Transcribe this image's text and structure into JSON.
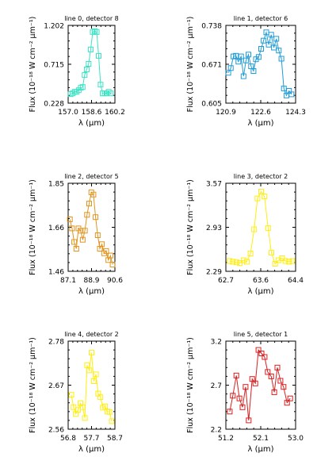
{
  "chart_data": [
    {
      "type": "line",
      "title": "line 0, detector 8",
      "xlabel": "λ (μm)",
      "ylabel": "Flux (10⁻¹⁸ W cm⁻² μm⁻¹)",
      "xlim": [
        157.0,
        160.2
      ],
      "ylim": [
        0.228,
        1.202
      ],
      "xticks": [
        "157.0",
        "158.6",
        "160.2"
      ],
      "yticks": [
        "0.228",
        "0.715",
        "1.202"
      ],
      "color": "#3be3c4",
      "marker": "square",
      "x": [
        157.17,
        157.31,
        157.45,
        157.58,
        157.72,
        157.86,
        157.99,
        158.13,
        158.27,
        158.4,
        158.54,
        158.68,
        158.81,
        158.95,
        159.09,
        159.22,
        159.36,
        159.5,
        159.63,
        159.77,
        159.91
      ],
      "y": [
        0.34,
        0.35,
        0.37,
        0.37,
        0.39,
        0.42,
        0.43,
        0.58,
        0.65,
        0.72,
        0.9,
        1.12,
        1.13,
        1.12,
        0.82,
        0.46,
        0.35,
        0.35,
        0.35,
        0.37,
        0.35
      ]
    },
    {
      "type": "line",
      "title": "line 1, detector 6",
      "xlabel": "λ (μm)",
      "ylabel": "Flux (10⁻¹⁸ W cm⁻² μm⁻¹)",
      "xlim": [
        120.9,
        124.3
      ],
      "ylim": [
        0.605,
        0.738
      ],
      "xticks": [
        "120.9",
        "122.6",
        "124.3"
      ],
      "yticks": [
        "0.605",
        "0.671",
        "0.738"
      ],
      "color": "#1f9bd6",
      "marker": "square",
      "x": [
        121.02,
        121.14,
        121.27,
        121.39,
        121.51,
        121.64,
        121.76,
        121.88,
        122.0,
        122.13,
        122.25,
        122.37,
        122.5,
        122.62,
        122.74,
        122.87,
        122.99,
        123.11,
        123.24,
        123.36,
        123.48,
        123.61,
        123.73,
        123.85,
        123.98,
        124.1
      ],
      "y": [
        0.657,
        0.665,
        0.685,
        0.686,
        0.676,
        0.685,
        0.651,
        0.678,
        0.688,
        0.668,
        0.66,
        0.68,
        0.684,
        0.698,
        0.712,
        0.726,
        0.705,
        0.722,
        0.7,
        0.715,
        0.695,
        0.681,
        0.63,
        0.618,
        0.626,
        0.62
      ]
    },
    {
      "type": "line",
      "title": "line 2, detector 5",
      "xlabel": "λ (μm)",
      "ylabel": "Flux (10⁻¹⁸ W cm⁻² μm⁻¹)",
      "xlim": [
        87.1,
        90.6
      ],
      "ylim": [
        1.46,
        1.85
      ],
      "xticks": [
        "87.1",
        "88.9",
        "90.6"
      ],
      "yticks": [
        "1.46",
        "1.66",
        "1.85"
      ],
      "color": "#e0951f",
      "marker": "square",
      "x": [
        87.23,
        87.39,
        87.55,
        87.71,
        87.87,
        88.03,
        88.19,
        88.35,
        88.51,
        88.67,
        88.83,
        88.99,
        89.15,
        89.31,
        89.47,
        89.63,
        89.79,
        89.95,
        90.11,
        90.27,
        90.43
      ],
      "y": [
        1.69,
        1.65,
        1.59,
        1.56,
        1.65,
        1.64,
        1.6,
        1.64,
        1.71,
        1.76,
        1.81,
        1.8,
        1.7,
        1.62,
        1.56,
        1.58,
        1.54,
        1.55,
        1.51,
        1.53,
        1.49
      ]
    },
    {
      "type": "line",
      "title": "line 3, detector 2",
      "xlabel": "λ (μm)",
      "ylabel": "Flux (10⁻¹⁸ W cm⁻² μm⁻¹)",
      "xlim": [
        62.7,
        64.4
      ],
      "ylim": [
        2.29,
        3.57
      ],
      "xticks": [
        "62.7",
        "63.6",
        "64.4"
      ],
      "yticks": [
        "2.29",
        "2.93",
        "3.57"
      ],
      "color": "#ffee11",
      "marker": "square",
      "x": [
        62.79,
        62.87,
        62.96,
        63.04,
        63.13,
        63.21,
        63.3,
        63.39,
        63.47,
        63.56,
        63.64,
        63.73,
        63.81,
        63.9,
        63.98,
        64.07,
        64.15,
        64.24,
        64.32
      ],
      "y": [
        2.44,
        2.43,
        2.42,
        2.41,
        2.45,
        2.43,
        2.55,
        2.9,
        3.35,
        3.45,
        3.38,
        2.92,
        2.56,
        2.4,
        2.45,
        2.48,
        2.44,
        2.43,
        2.44
      ]
    },
    {
      "type": "line",
      "title": "line 4, detector 2",
      "xlabel": "λ (μm)",
      "ylabel": "Flux (10⁻¹⁸ W cm⁻² μm⁻¹)",
      "xlim": [
        56.8,
        58.7
      ],
      "ylim": [
        2.56,
        2.78
      ],
      "xticks": [
        "56.8",
        "57.7",
        "58.7"
      ],
      "yticks": [
        "2.56",
        "2.67",
        "2.78"
      ],
      "color": "#ffee11",
      "marker": "square",
      "x": [
        56.93,
        57.02,
        57.11,
        57.2,
        57.3,
        57.39,
        57.48,
        57.57,
        57.66,
        57.75,
        57.84,
        57.93,
        58.02,
        58.11,
        58.21,
        58.3,
        58.39,
        58.48,
        58.57
      ],
      "y": [
        2.646,
        2.615,
        2.598,
        2.608,
        2.625,
        2.615,
        2.588,
        2.72,
        2.707,
        2.751,
        2.68,
        2.697,
        2.649,
        2.64,
        2.614,
        2.617,
        2.604,
        2.603,
        2.58
      ]
    },
    {
      "type": "line",
      "title": "line 5, detector 1",
      "xlabel": "λ (μm)",
      "ylabel": "Flux (10⁻¹⁸ W cm⁻² μm⁻¹)",
      "xlim": [
        51.2,
        53.0
      ],
      "ylim": [
        2.2,
        3.2
      ],
      "xticks": [
        "51.2",
        "52.1",
        "53.0"
      ],
      "yticks": [
        "2.2",
        "2.7",
        "3.2"
      ],
      "color": "#d62020",
      "marker": "square",
      "x": [
        51.3,
        51.38,
        51.47,
        51.55,
        51.63,
        51.71,
        51.79,
        51.88,
        51.96,
        52.04,
        52.12,
        52.2,
        52.28,
        52.37,
        52.45,
        52.53,
        52.61,
        52.69,
        52.78,
        52.86
      ],
      "y": [
        2.4,
        2.58,
        2.81,
        2.55,
        2.45,
        2.68,
        2.3,
        2.77,
        2.72,
        3.1,
        3.06,
        3.02,
        2.85,
        2.8,
        2.62,
        2.9,
        2.75,
        2.68,
        2.5,
        2.55
      ]
    }
  ]
}
